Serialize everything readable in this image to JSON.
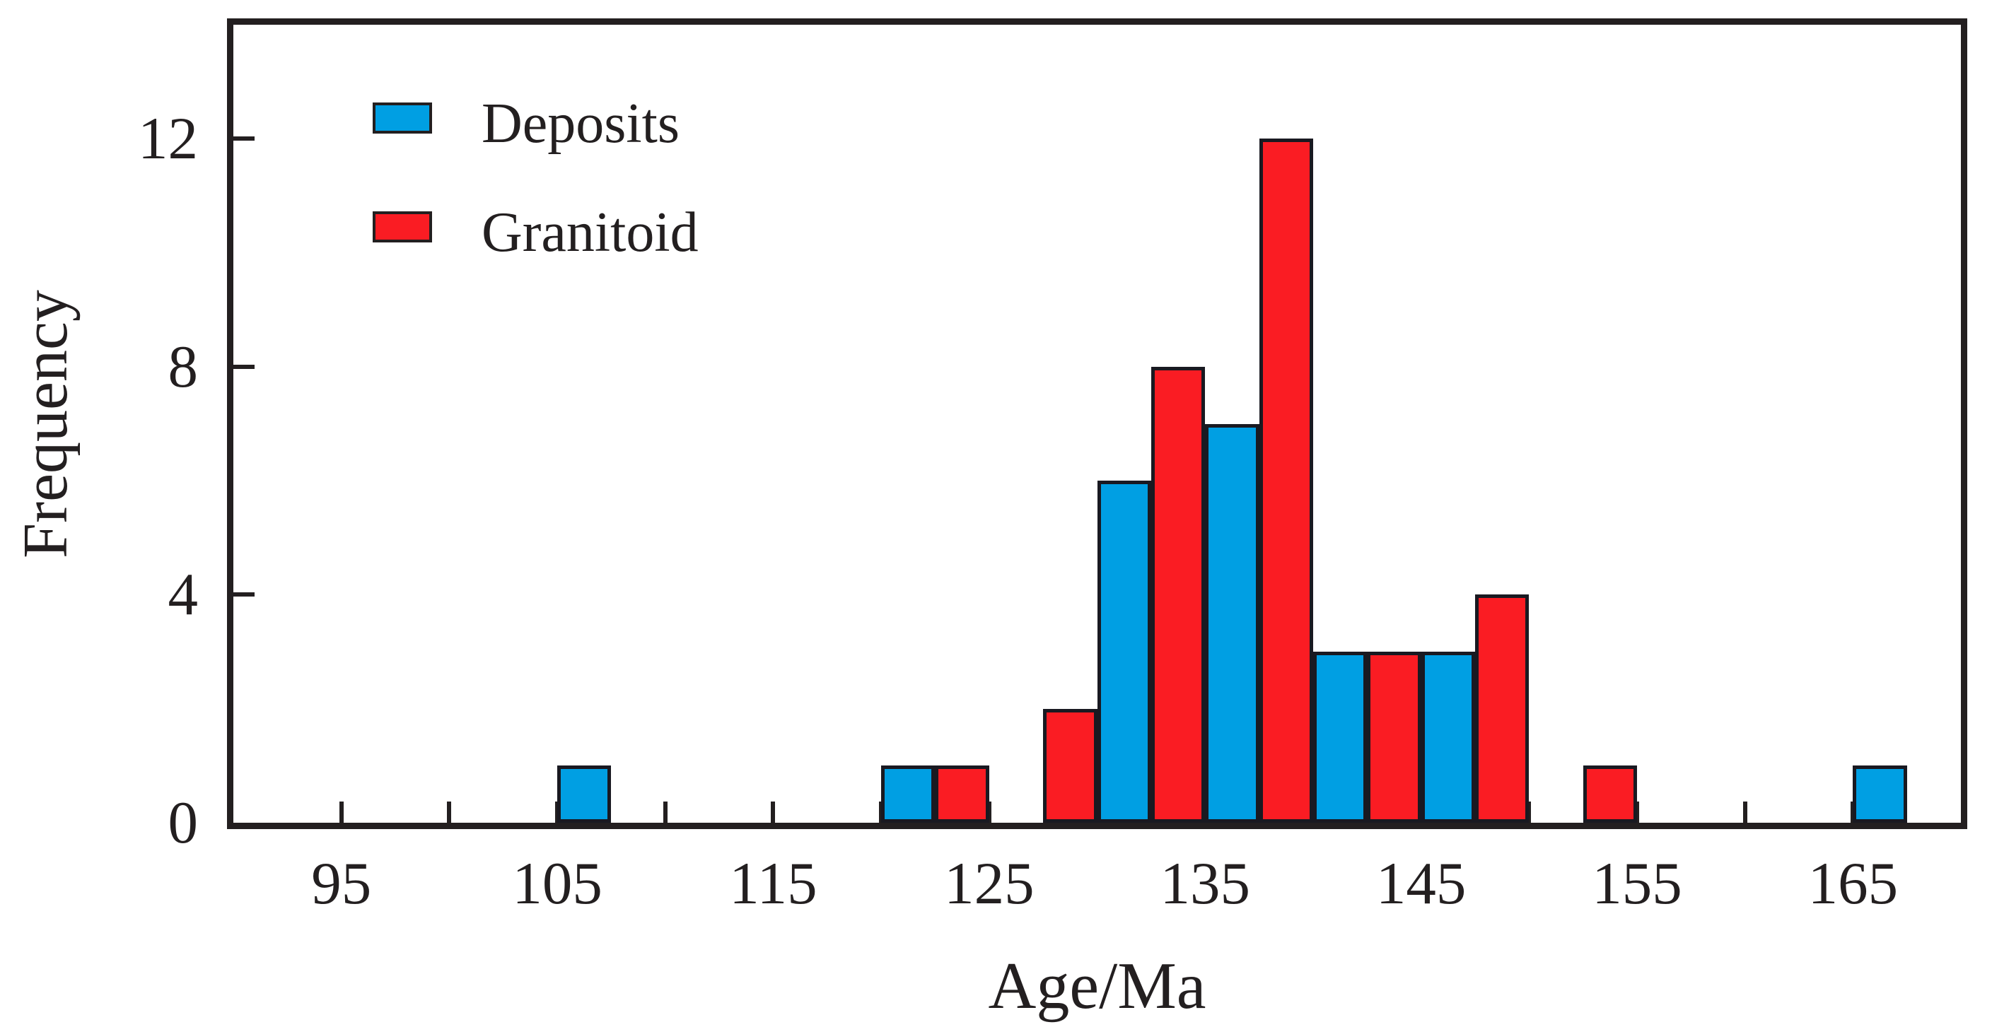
{
  "figure": {
    "background": "#ffffff",
    "frame_color": "#231f20",
    "text_color": "#231f20"
  },
  "legend": {
    "items": [
      {
        "label": "Deposits",
        "color": "#009FE3"
      },
      {
        "label": "Granitoid",
        "color": "#FA1C23"
      }
    ]
  },
  "axes": {
    "xlabel": "Age/Ma",
    "ylabel": "Frequency",
    "x_tick_labels": [
      "95",
      "105",
      "115",
      "125",
      "135",
      "145",
      "155",
      "165"
    ],
    "y_tick_labels": [
      "0",
      "4",
      "8",
      "12"
    ]
  },
  "chart_data": {
    "type": "bar",
    "subtype": "histogram-grouped",
    "title": "",
    "xlabel": "Age/Ma",
    "ylabel": "Frequency",
    "xlim": [
      90,
      170
    ],
    "ylim": [
      0,
      14
    ],
    "bin_width": 2.5,
    "x_ticks_all": [
      95,
      100,
      105,
      110,
      115,
      120,
      125,
      130,
      135,
      140,
      145,
      150,
      155,
      160,
      165
    ],
    "x_labeled_ticks": [
      95,
      105,
      115,
      125,
      135,
      145,
      155,
      165
    ],
    "y_marked_ticks": [
      4,
      8,
      12
    ],
    "y_labeled_ticks": [
      0,
      4,
      8,
      12
    ],
    "grid": false,
    "legend_position": "upper-left-inside",
    "series": [
      {
        "name": "Deposits",
        "color": "#009FE3",
        "bins": [
          {
            "x0": 105,
            "x1": 107.5,
            "count": 1
          },
          {
            "x0": 120,
            "x1": 122.5,
            "count": 1
          },
          {
            "x0": 130,
            "x1": 132.5,
            "count": 6
          },
          {
            "x0": 135,
            "x1": 137.5,
            "count": 7
          },
          {
            "x0": 140,
            "x1": 142.5,
            "count": 3
          },
          {
            "x0": 145,
            "x1": 147.5,
            "count": 3
          },
          {
            "x0": 165,
            "x1": 167.5,
            "count": 1
          }
        ]
      },
      {
        "name": "Granitoid",
        "color": "#FA1C23",
        "bins": [
          {
            "x0": 122.5,
            "x1": 125,
            "count": 1
          },
          {
            "x0": 127.5,
            "x1": 130,
            "count": 2
          },
          {
            "x0": 132.5,
            "x1": 135,
            "count": 8
          },
          {
            "x0": 137.5,
            "x1": 140,
            "count": 12
          },
          {
            "x0": 142.5,
            "x1": 145,
            "count": 3
          },
          {
            "x0": 147.5,
            "x1": 150,
            "count": 4
          },
          {
            "x0": 152.5,
            "x1": 155,
            "count": 1
          }
        ]
      }
    ]
  }
}
